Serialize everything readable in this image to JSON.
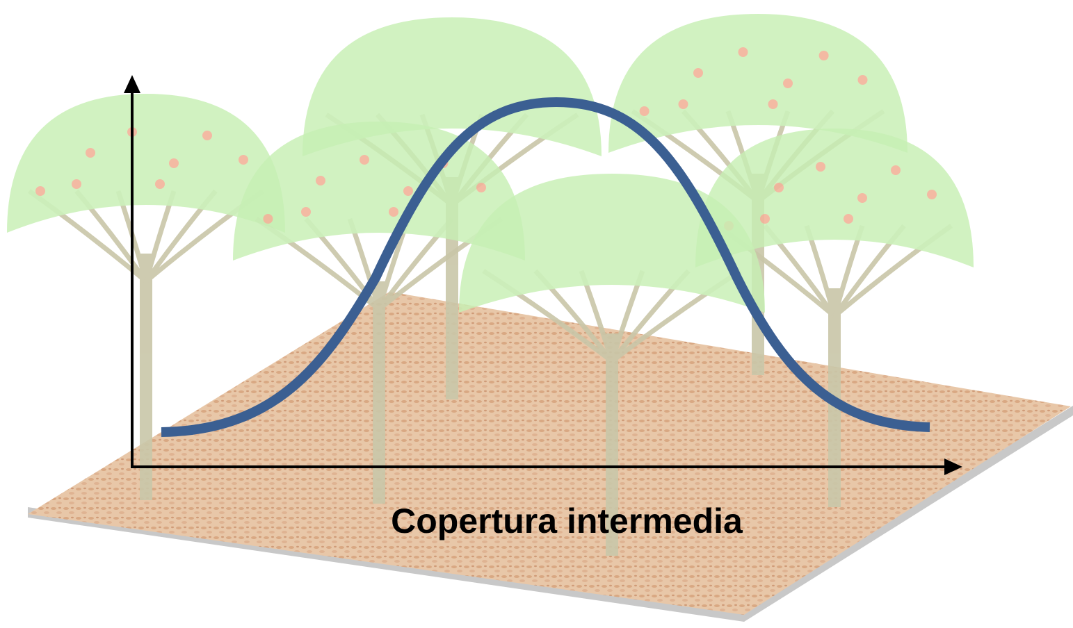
{
  "label": "Copertura intermedia"
}
